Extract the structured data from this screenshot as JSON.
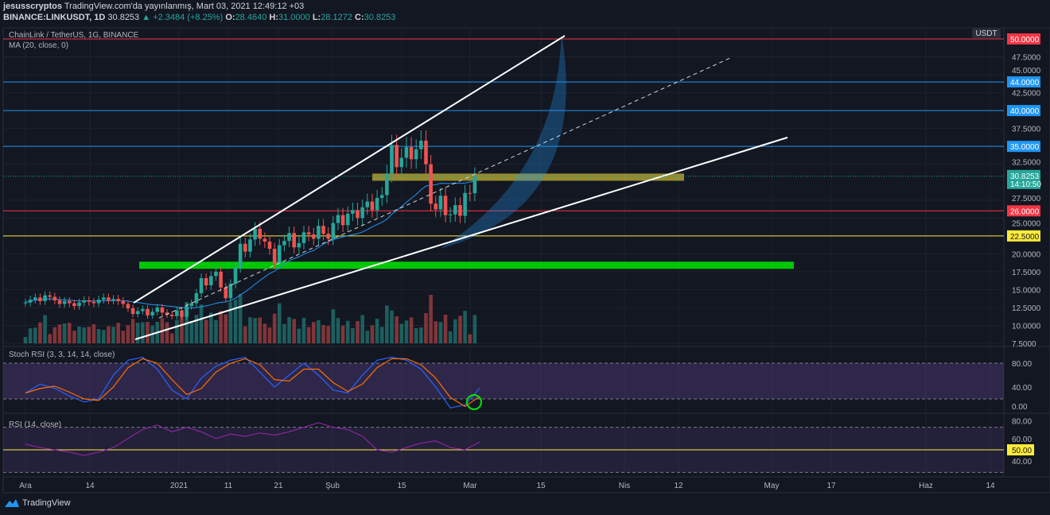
{
  "header": {
    "author": "jesusscryptos",
    "published": "TradingView.com'da yayınlanmış, Mart 03, 2021 12:49:12 +03",
    "symbol": "BINANCE:LINKUSDT, 1D",
    "last": "30.8253",
    "change": "+2.3484 (+8.25%)",
    "o_label": "O:",
    "o": "28.4640",
    "h_label": "H:",
    "h": "31.0000",
    "l_label": "L:",
    "l": "28.1272",
    "c_label": "C:",
    "c": "30.8253"
  },
  "legend": {
    "title": "ChainLink / TetherUS, 1G, BINANCE",
    "ma": "MA (20, close, 0)",
    "stoch": "Stoch RSI (3, 3, 14, 14, close)",
    "rsi": "RSI (14, close)"
  },
  "price_axis": {
    "currency": "USDT",
    "ticks": [
      "47.5000",
      "45.0000",
      "42.5000",
      "37.5000",
      "32.5000",
      "27.5000",
      "25.0000",
      "20.0000",
      "17.5000",
      "15.0000",
      "12.5000",
      "10.0000",
      "7.5000"
    ],
    "levels": [
      {
        "value": 50,
        "label": "50.0000",
        "color": "#f23645"
      },
      {
        "value": 44,
        "label": "44.0000",
        "color": "#2196f3"
      },
      {
        "value": 40,
        "label": "40.0000",
        "color": "#2196f3"
      },
      {
        "value": 35,
        "label": "35.0000",
        "color": "#2196f3"
      },
      {
        "value": 26,
        "label": "26.0000",
        "color": "#f23645"
      },
      {
        "value": 22.5,
        "label": "22.5000",
        "color": "#ffeb3b"
      }
    ],
    "current": {
      "value": 30.8253,
      "label": "30.8253",
      "countdown": "14:10:50",
      "color": "#26a69a"
    }
  },
  "stoch_axis": [
    "80.00",
    "40.00",
    "0.00"
  ],
  "rsi_axis": [
    "80.00",
    "60.00",
    "50.00",
    "40.00"
  ],
  "time_axis": [
    "Ara",
    "14",
    "2021",
    "11",
    "21",
    "Şub",
    "15",
    "Mar",
    "15",
    "Nis",
    "12",
    "May",
    "17",
    "Haz",
    "14"
  ],
  "footer": {
    "brand": "TradingView"
  },
  "chart_data": {
    "type": "candlestick",
    "start": "2020-12-01",
    "interval": "1D",
    "closes": [
      13.2,
      13.6,
      13.9,
      13.4,
      14.2,
      14.0,
      13.5,
      13.0,
      13.4,
      13.1,
      12.7,
      13.2,
      13.5,
      13.3,
      13.1,
      13.6,
      13.9,
      13.5,
      13.7,
      13.4,
      13.0,
      12.4,
      11.6,
      12.0,
      12.3,
      11.4,
      11.9,
      12.5,
      11.8,
      11.5,
      11.3,
      12.1,
      11.2,
      12.7,
      13.1,
      14.5,
      16.6,
      15.6,
      16.9,
      17.5,
      15.3,
      13.8,
      15.8,
      18.1,
      21.4,
      20.3,
      22.0,
      23.5,
      22.1,
      21.7,
      20.7,
      18.6,
      21.2,
      21.8,
      22.9,
      20.9,
      21.5,
      23.0,
      22.7,
      22.1,
      23.9,
      22.8,
      22.1,
      24.3,
      25.4,
      24.0,
      25.6,
      26.1,
      25.0,
      26.5,
      27.3,
      26.1,
      27.8,
      28.2,
      31.2,
      35.2,
      32.1,
      33.4,
      34.9,
      33.2,
      34.6,
      35.8,
      32.5,
      27.0,
      26.2,
      28.1,
      25.4,
      25.5,
      26.8,
      25.3,
      28.5,
      28.46,
      30.83
    ],
    "stoch_k_every3d": [
      30,
      45,
      38,
      25,
      15,
      20,
      60,
      85,
      90,
      70,
      35,
      20,
      55,
      75,
      85,
      90,
      65,
      40,
      60,
      80,
      60,
      35,
      30,
      60,
      85,
      90,
      85,
      70,
      40,
      5,
      10,
      38
    ],
    "rsi_every3d": [
      55,
      52,
      50,
      48,
      45,
      48,
      52,
      60,
      68,
      72,
      66,
      70,
      66,
      60,
      64,
      62,
      65,
      63,
      66,
      70,
      74,
      70,
      68,
      62,
      50,
      48,
      52,
      56,
      58,
      52,
      50,
      57
    ],
    "ylim": [
      7.5,
      50
    ]
  }
}
